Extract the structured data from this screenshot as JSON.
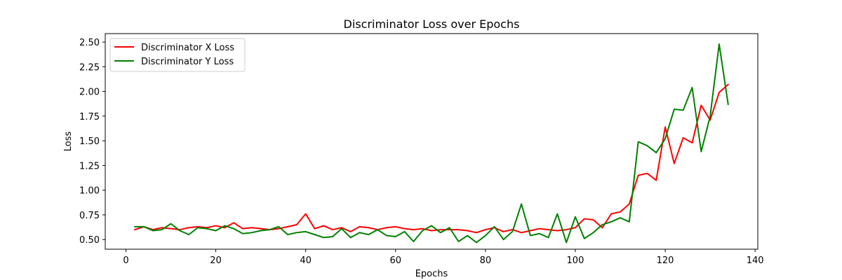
{
  "chart_data": {
    "type": "line",
    "title": "Discriminator Loss over Epochs",
    "xlabel": "Epochs",
    "ylabel": "Loss",
    "xlim": [
      -4.6,
      140.6
    ],
    "ylim": [
      0.402,
      2.586
    ],
    "xticks": [
      0,
      20,
      40,
      60,
      80,
      100,
      120,
      140
    ],
    "xtick_labels": [
      "0",
      "20",
      "40",
      "60",
      "80",
      "100",
      "120",
      "140"
    ],
    "yticks": [
      0.5,
      0.75,
      1.0,
      1.25,
      1.5,
      1.75,
      2.0,
      2.25,
      2.5
    ],
    "ytick_labels": [
      "0.50",
      "0.75",
      "1.00",
      "1.25",
      "1.50",
      "1.75",
      "2.00",
      "2.25",
      "2.50"
    ],
    "grid": false,
    "legend_position": "upper-left",
    "x": [
      2,
      4,
      6,
      8,
      10,
      12,
      14,
      16,
      18,
      20,
      22,
      24,
      26,
      28,
      30,
      32,
      34,
      36,
      38,
      40,
      42,
      44,
      46,
      48,
      50,
      52,
      54,
      56,
      58,
      60,
      62,
      64,
      66,
      68,
      70,
      72,
      74,
      76,
      78,
      80,
      82,
      84,
      86,
      88,
      90,
      92,
      94,
      96,
      98,
      100,
      102,
      104,
      106,
      108,
      110,
      112,
      114,
      116,
      118,
      120,
      122,
      124,
      126,
      128,
      130,
      132,
      134
    ],
    "series": [
      {
        "name": "Discriminator X Loss",
        "color": "#ff0000",
        "values": [
          0.6,
          0.63,
          0.6,
          0.62,
          0.61,
          0.6,
          0.62,
          0.63,
          0.62,
          0.64,
          0.62,
          0.67,
          0.61,
          0.62,
          0.61,
          0.6,
          0.61,
          0.63,
          0.65,
          0.76,
          0.61,
          0.64,
          0.6,
          0.62,
          0.58,
          0.63,
          0.62,
          0.6,
          0.62,
          0.63,
          0.61,
          0.6,
          0.61,
          0.59,
          0.6,
          0.6,
          0.6,
          0.59,
          0.57,
          0.6,
          0.62,
          0.58,
          0.6,
          0.57,
          0.59,
          0.61,
          0.6,
          0.59,
          0.6,
          0.62,
          0.71,
          0.7,
          0.62,
          0.76,
          0.78,
          0.86,
          1.15,
          1.17,
          1.1,
          1.64,
          1.27,
          1.53,
          1.48,
          1.86,
          1.71,
          1.99,
          2.07
        ]
      },
      {
        "name": "Discriminator Y Loss",
        "color": "#008000",
        "values": [
          0.63,
          0.63,
          0.59,
          0.6,
          0.66,
          0.59,
          0.55,
          0.62,
          0.61,
          0.59,
          0.64,
          0.61,
          0.56,
          0.57,
          0.59,
          0.6,
          0.63,
          0.55,
          0.57,
          0.58,
          0.55,
          0.52,
          0.53,
          0.61,
          0.52,
          0.57,
          0.55,
          0.6,
          0.54,
          0.53,
          0.58,
          0.48,
          0.59,
          0.64,
          0.57,
          0.62,
          0.48,
          0.54,
          0.47,
          0.54,
          0.63,
          0.5,
          0.58,
          0.86,
          0.54,
          0.56,
          0.52,
          0.76,
          0.47,
          0.73,
          0.51,
          0.57,
          0.65,
          0.68,
          0.72,
          0.68,
          1.49,
          1.45,
          1.38,
          1.52,
          1.82,
          1.81,
          2.04,
          1.39,
          1.75,
          2.48,
          1.87
        ]
      }
    ]
  }
}
